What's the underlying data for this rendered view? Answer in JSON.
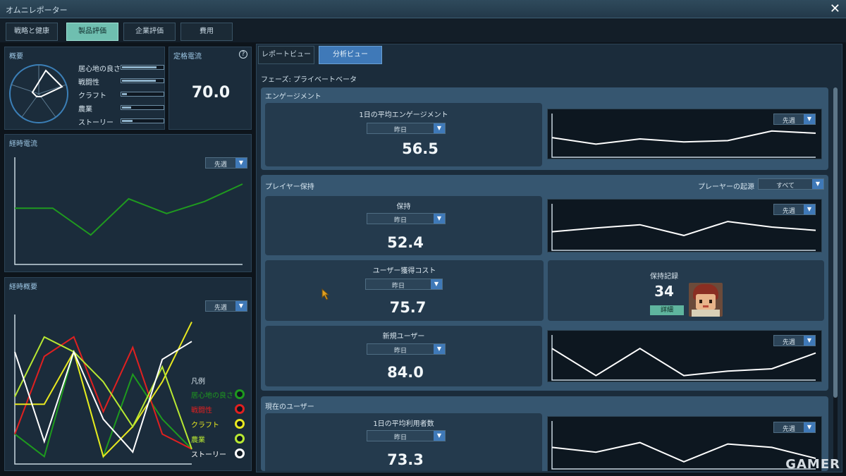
{
  "window": {
    "title": "オムニレポーター",
    "close_icon": "close-icon"
  },
  "main_tabs": [
    {
      "label": "戦略と健康",
      "active": false
    },
    {
      "label": "製品評価",
      "active": true
    },
    {
      "label": "企業評価",
      "active": false
    },
    {
      "label": "費用",
      "active": false
    }
  ],
  "overview": {
    "title": "概要",
    "attributes": [
      {
        "label": "居心地の良さ",
        "level": 0.85
      },
      {
        "label": "戦闘性",
        "level": 0.82
      },
      {
        "label": "クラフト",
        "level": 0.12
      },
      {
        "label": "農業",
        "level": 0.22
      },
      {
        "label": "ストーリー",
        "level": 0.25
      }
    ]
  },
  "rating": {
    "title": "定格電流",
    "value": "70.0",
    "help_icon": "help-icon"
  },
  "trend_current": {
    "title": "経時電流",
    "period": "先週",
    "chart_data": {
      "type": "line",
      "series": [
        {
          "values": [
            62,
            62,
            42,
            69,
            58,
            67,
            80
          ]
        }
      ],
      "ylim": [
        20,
        100
      ],
      "line_color": "#1f9a1f"
    }
  },
  "trend_overview": {
    "title": "経時概要",
    "period": "先週",
    "legend_title": "凡例",
    "chart_data": {
      "type": "line",
      "ylim": [
        0,
        100
      ],
      "series": [
        {
          "name": "居心地の良さ",
          "color": "#1e9a1e",
          "values": [
            20,
            5,
            75,
            5,
            60,
            30,
            10
          ]
        },
        {
          "name": "戦闘性",
          "color": "#e02020",
          "values": [
            20,
            72,
            85,
            35,
            78,
            20,
            10
          ]
        },
        {
          "name": "クラフト",
          "color": "#e8e820",
          "values": [
            40,
            40,
            75,
            5,
            25,
            55,
            95
          ]
        },
        {
          "name": "農業",
          "color": "#b8e832",
          "values": [
            45,
            85,
            75,
            55,
            25,
            65,
            10
          ]
        },
        {
          "name": "ストーリー",
          "color": "#ffffff",
          "values": [
            75,
            15,
            75,
            30,
            8,
            70,
            82
          ]
        }
      ]
    }
  },
  "sub_tabs": [
    {
      "label": "レポートビュー",
      "active": false
    },
    {
      "label": "分析ビュー",
      "active": true
    }
  ],
  "phase": "フェーズ: プライベートベータ",
  "engagement": {
    "title": "エンゲージメント",
    "metric": {
      "label": "1日の平均エンゲージメント",
      "period": "昨日",
      "value": "56.5"
    },
    "chart": {
      "period": "先週",
      "chart_data": {
        "type": "line",
        "series": [
          {
            "values": [
              45,
              30,
              42,
              35,
              38,
              60,
              55
            ]
          }
        ],
        "ylim": [
          0,
          100
        ]
      }
    }
  },
  "retention": {
    "title": "プレイヤー保持",
    "source_label": "プレーヤーの起源",
    "source_value": "すべて",
    "retention_metric": {
      "label": "保持",
      "period": "昨日",
      "value": "52.4"
    },
    "retention_chart": {
      "period": "先週",
      "chart_data": {
        "type": "line",
        "series": [
          {
            "values": [
              40,
              48,
              55,
              32,
              62,
              50,
              43
            ]
          }
        ],
        "ylim": [
          0,
          100
        ]
      }
    },
    "acquisition": {
      "label": "ユーザー獲得コスト",
      "period": "昨日",
      "value": "75.7"
    },
    "record": {
      "label": "保持記録",
      "value": "34",
      "button": "詳細"
    },
    "new_users": {
      "label": "新規ユーザー",
      "period": "昨日",
      "value": "84.0"
    },
    "new_users_chart": {
      "period": "先週",
      "chart_data": {
        "type": "line",
        "series": [
          {
            "values": [
              70,
              10,
              70,
              10,
              20,
              25,
              60
            ]
          }
        ],
        "ylim": [
          0,
          100
        ]
      }
    }
  },
  "current_users": {
    "title": "現在のユーザー",
    "metric": {
      "label": "1日の平均利用者数",
      "period": "昨日",
      "value": "73.3"
    },
    "chart": {
      "period": "先週",
      "chart_data": {
        "type": "line",
        "series": [
          {
            "values": [
              45,
              35,
              55,
              15,
              52,
              45,
              22
            ]
          }
        ],
        "ylim": [
          0,
          100
        ]
      }
    }
  },
  "watermark": "GAMER"
}
